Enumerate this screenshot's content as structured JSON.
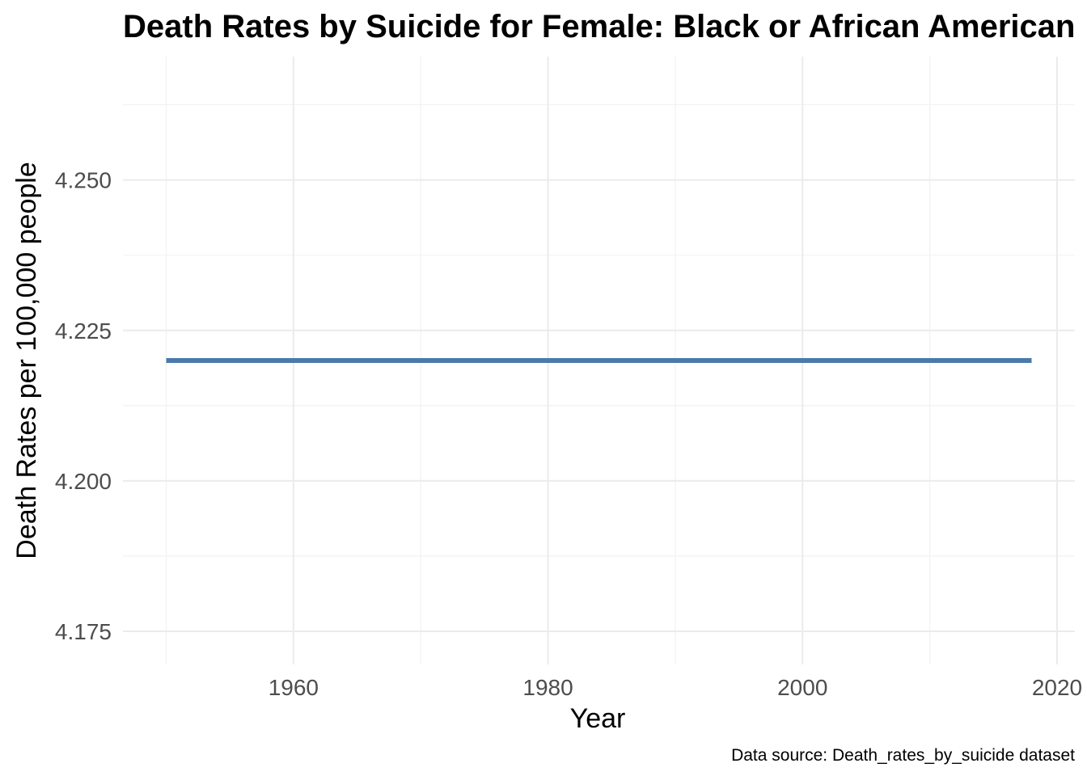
{
  "chart_data": {
    "type": "line",
    "title": "Death Rates by Suicide for Female: Black or African American",
    "xlabel": "Year",
    "ylabel": "Death Rates per 100,000 people",
    "caption": "Data source: Death_rates_by_suicide dataset",
    "xlim": [
      1946.6,
      2021.4
    ],
    "ylim": [
      4.1695,
      4.2705
    ],
    "x_ticks": [
      1960,
      1980,
      2000,
      2020
    ],
    "y_ticks": [
      4.175,
      4.2,
      4.225,
      4.25
    ],
    "y_tick_labels": [
      "4.175",
      "4.200",
      "4.225",
      "4.250"
    ],
    "grid": true,
    "legend": "none",
    "series": [
      {
        "color": "#4a7aaa",
        "x": [
          1950,
          2018
        ],
        "y": [
          4.22,
          4.22
        ]
      }
    ]
  }
}
